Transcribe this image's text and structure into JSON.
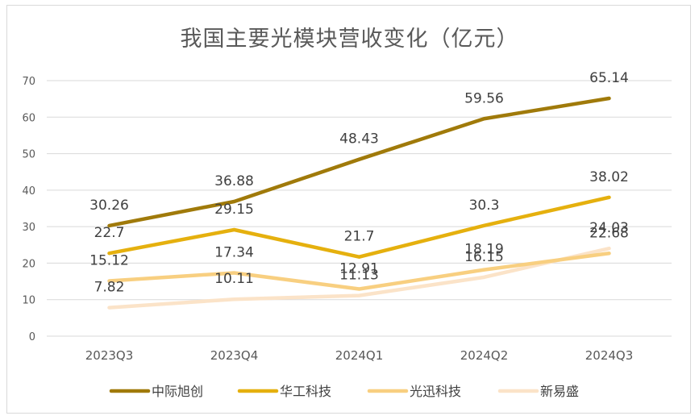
{
  "chart_data": {
    "type": "line",
    "title": "我国主要光模块营收变化（亿元）",
    "categories": [
      "2023Q3",
      "2023Q4",
      "2024Q1",
      "2024Q2",
      "2024Q3"
    ],
    "ylim": [
      0,
      70
    ],
    "yticks": [
      0,
      10,
      20,
      30,
      40,
      50,
      60,
      70
    ],
    "grid": true,
    "legend_position": "bottom",
    "series": [
      {
        "name": "中际旭创",
        "values": [
          30.26,
          36.88,
          48.43,
          59.56,
          65.14
        ],
        "color": "#A07A0A"
      },
      {
        "name": "华工科技",
        "values": [
          22.7,
          29.15,
          21.7,
          30.3,
          38.02
        ],
        "color": "#E5B00E"
      },
      {
        "name": "光迅科技",
        "values": [
          15.12,
          17.34,
          12.91,
          18.19,
          22.68
        ],
        "color": "#F8CF80"
      },
      {
        "name": "新易盛",
        "values": [
          7.82,
          10.11,
          11.13,
          16.15,
          24.03
        ],
        "color": "#FBE3C8"
      }
    ]
  }
}
